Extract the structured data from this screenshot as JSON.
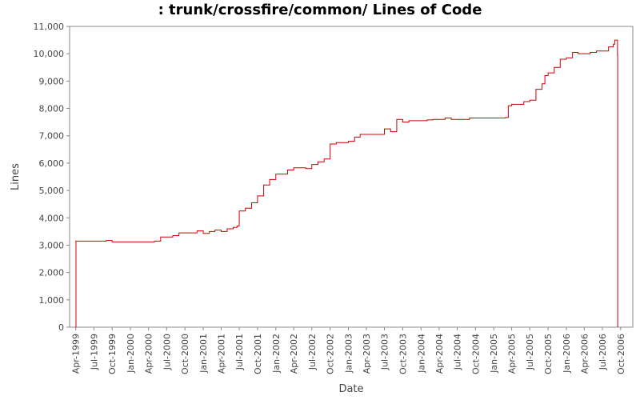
{
  "chart_data": {
    "type": "line",
    "title": ": trunk/crossfire/common/ Lines of Code",
    "xlabel": "Date",
    "ylabel": "Lines",
    "ylim": [
      0,
      11000
    ],
    "xlim": [
      "1999-03-01",
      "2006-12-01"
    ],
    "yticks": [
      0,
      1000,
      2000,
      3000,
      4000,
      5000,
      6000,
      7000,
      8000,
      9000,
      10000,
      11000
    ],
    "ytick_labels": [
      "0",
      "1,000",
      "2,000",
      "3,000",
      "4,000",
      "5,000",
      "6,000",
      "7,000",
      "8,000",
      "9,000",
      "10,000",
      "11,000"
    ],
    "xticks": [
      "1999-04-01",
      "1999-07-01",
      "1999-10-01",
      "2000-01-01",
      "2000-04-01",
      "2000-07-01",
      "2000-10-01",
      "2001-01-01",
      "2001-04-01",
      "2001-07-01",
      "2001-10-01",
      "2002-01-01",
      "2002-04-01",
      "2002-07-01",
      "2002-10-01",
      "2003-01-01",
      "2003-04-01",
      "2003-07-01",
      "2003-10-01",
      "2004-01-01",
      "2004-04-01",
      "2004-07-01",
      "2004-10-01",
      "2005-01-01",
      "2005-04-01",
      "2005-07-01",
      "2005-10-01",
      "2006-01-01",
      "2006-04-01",
      "2006-07-01",
      "2006-10-01"
    ],
    "xtick_labels": [
      "Apr-1999",
      "Jul-1999",
      "Oct-1999",
      "Jan-2000",
      "Apr-2000",
      "Jul-2000",
      "Oct-2000",
      "Jan-2001",
      "Apr-2001",
      "Jul-2001",
      "Oct-2001",
      "Jan-2002",
      "Apr-2002",
      "Jul-2002",
      "Oct-2002",
      "Jan-2003",
      "Apr-2003",
      "Jul-2003",
      "Oct-2003",
      "Jan-2004",
      "Apr-2004",
      "Jul-2004",
      "Oct-2004",
      "Jan-2005",
      "Apr-2005",
      "Jul-2005",
      "Oct-2005",
      "Jan-2006",
      "Apr-2006",
      "Jul-2006",
      "Oct-2006"
    ],
    "grid": false,
    "legend": "none",
    "line_color": "#cc0000",
    "series": [
      {
        "x": [
          "1999-04-01",
          "1999-04-02",
          "1999-09-01",
          "1999-10-01",
          "2000-03-01",
          "2000-05-01",
          "2000-06-01",
          "2000-08-01",
          "2000-09-01",
          "2000-12-01",
          "2001-01-01",
          "2001-02-01",
          "2001-03-01",
          "2001-04-01",
          "2001-05-01",
          "2001-06-01",
          "2001-06-20",
          "2001-07-01",
          "2001-08-01",
          "2001-09-01",
          "2001-10-01",
          "2001-11-01",
          "2001-12-01",
          "2002-01-01",
          "2002-03-01",
          "2002-04-01",
          "2002-06-01",
          "2002-07-01",
          "2002-08-01",
          "2002-09-01",
          "2002-10-01",
          "2002-11-01",
          "2003-01-01",
          "2003-02-01",
          "2003-03-01",
          "2003-06-01",
          "2003-07-01",
          "2003-08-01",
          "2003-09-01",
          "2003-10-01",
          "2003-11-01",
          "2004-02-01",
          "2004-03-01",
          "2004-05-01",
          "2004-06-01",
          "2004-09-01",
          "2004-12-01",
          "2005-03-01",
          "2005-03-15",
          "2005-04-01",
          "2005-06-01",
          "2005-07-01",
          "2005-08-01",
          "2005-09-01",
          "2005-09-15",
          "2005-10-01",
          "2005-11-01",
          "2005-12-01",
          "2006-01-01",
          "2006-02-01",
          "2006-03-01",
          "2006-05-01",
          "2006-06-01",
          "2006-08-01",
          "2006-08-25",
          "2006-09-01",
          "2006-09-15",
          "2006-09-16"
        ],
        "y": [
          0,
          3150,
          3170,
          3120,
          3120,
          3150,
          3300,
          3350,
          3450,
          3520,
          3430,
          3500,
          3550,
          3500,
          3600,
          3650,
          3700,
          4250,
          4350,
          4550,
          4800,
          5200,
          5400,
          5600,
          5750,
          5830,
          5800,
          5950,
          6050,
          6150,
          6700,
          6750,
          6800,
          6950,
          7050,
          7050,
          7250,
          7150,
          7600,
          7500,
          7550,
          7580,
          7600,
          7650,
          7600,
          7650,
          7650,
          7670,
          8100,
          8150,
          8250,
          8300,
          8700,
          8900,
          9200,
          9300,
          9500,
          9800,
          9850,
          10050,
          10000,
          10050,
          10100,
          10250,
          10350,
          10500,
          9950,
          0
        ]
      }
    ]
  }
}
